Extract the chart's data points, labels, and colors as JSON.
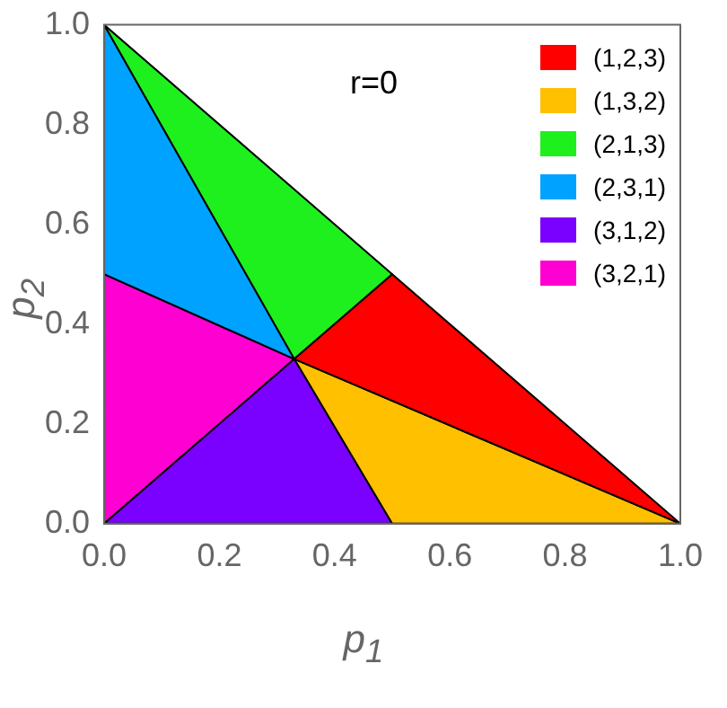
{
  "chart_data": {
    "type": "area",
    "xlabel": "p$_{1}$",
    "ylabel": "p$_{2}$",
    "annotations": [
      "r=0"
    ],
    "xlim": [
      0,
      1
    ],
    "ylim": [
      0,
      1
    ],
    "xticks": [
      {
        "value": 0,
        "label": "0.0"
      },
      {
        "value": 0.2,
        "label": "0.2"
      },
      {
        "value": 0.4,
        "label": "0.4"
      },
      {
        "value": 0.6,
        "label": "0.6"
      },
      {
        "value": 0.8,
        "label": "0.8"
      },
      {
        "value": 1,
        "label": "1.0"
      }
    ],
    "yticks": [
      {
        "value": 0,
        "label": "0.0"
      },
      {
        "value": 0.2,
        "label": "0.2"
      },
      {
        "value": 0.4,
        "label": "0.4"
      },
      {
        "value": 0.6,
        "label": "0.6"
      },
      {
        "value": 0.8,
        "label": "0.8"
      },
      {
        "value": 1,
        "label": "1.0"
      }
    ],
    "grid": false,
    "legend": "top right",
    "marker": "none",
    "line_style": "solid",
    "series": [
      {
        "name": "(1,2,3)",
        "color": "#ff0000",
        "x": [
          0.33,
          0.5,
          1,
          0.33
        ],
        "values": [
          0.33,
          0.5,
          0,
          0.33
        ]
      },
      {
        "name": "(1,3,2)",
        "color": "#ffc000",
        "x": [
          0.33,
          1,
          0.5,
          0.33
        ],
        "values": [
          0.33,
          0,
          0,
          0.33
        ]
      },
      {
        "name": "(2,1,3)",
        "color": "#1ef01e",
        "x": [
          0.33,
          0.5,
          0,
          0.33
        ],
        "values": [
          0.33,
          0.5,
          1,
          0.33
        ]
      },
      {
        "name": "(2,3,1)",
        "color": "#00a2ff",
        "x": [
          0.33,
          0,
          0,
          0.33
        ],
        "values": [
          0.33,
          1,
          0.5,
          0.33
        ]
      },
      {
        "name": "(3,1,2)",
        "color": "#7a00ff",
        "x": [
          0.33,
          0.5,
          0,
          0.33
        ],
        "values": [
          0.33,
          0,
          0,
          0.33
        ]
      },
      {
        "name": "(3,2,1)",
        "color": "#ff00d2",
        "x": [
          0.33,
          0,
          0,
          0.33
        ],
        "values": [
          0.33,
          0.5,
          0,
          0.33
        ]
      }
    ]
  }
}
